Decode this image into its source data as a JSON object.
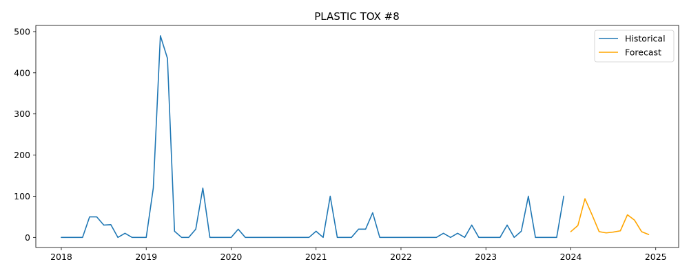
{
  "chart_data": {
    "type": "line",
    "title": "PLASTIC TOX #8",
    "xlabel": "",
    "ylabel": "",
    "xlim": [
      2017.7,
      2025.27
    ],
    "ylim": [
      -24.5,
      515
    ],
    "xticks": [
      2018,
      2019,
      2020,
      2021,
      2022,
      2023,
      2024,
      2025
    ],
    "yticks": [
      0,
      100,
      200,
      300,
      400,
      500
    ],
    "grid": false,
    "legend": "top-right",
    "series": [
      {
        "name": "Historical",
        "color": "#1f77b4",
        "points": [
          [
            "2018-01",
            0
          ],
          [
            "2018-02",
            0
          ],
          [
            "2018-03",
            0
          ],
          [
            "2018-04",
            0
          ],
          [
            "2018-05",
            50
          ],
          [
            "2018-06",
            50
          ],
          [
            "2018-07",
            30
          ],
          [
            "2018-08",
            31
          ],
          [
            "2018-09",
            0
          ],
          [
            "2018-10",
            10
          ],
          [
            "2018-11",
            0
          ],
          [
            "2018-12",
            0
          ],
          [
            "2019-01",
            0
          ],
          [
            "2019-02",
            120
          ],
          [
            "2019-03",
            490
          ],
          [
            "2019-04",
            435
          ],
          [
            "2019-05",
            15
          ],
          [
            "2019-06",
            0
          ],
          [
            "2019-07",
            0
          ],
          [
            "2019-08",
            20
          ],
          [
            "2019-09",
            120
          ],
          [
            "2019-10",
            0
          ],
          [
            "2019-11",
            0
          ],
          [
            "2019-12",
            0
          ],
          [
            "2020-01",
            0
          ],
          [
            "2020-02",
            20
          ],
          [
            "2020-03",
            0
          ],
          [
            "2020-04",
            0
          ],
          [
            "2020-05",
            0
          ],
          [
            "2020-06",
            0
          ],
          [
            "2020-07",
            0
          ],
          [
            "2020-08",
            0
          ],
          [
            "2020-09",
            0
          ],
          [
            "2020-10",
            0
          ],
          [
            "2020-11",
            0
          ],
          [
            "2020-12",
            0
          ],
          [
            "2021-01",
            15
          ],
          [
            "2021-02",
            0
          ],
          [
            "2021-03",
            100
          ],
          [
            "2021-04",
            0
          ],
          [
            "2021-05",
            0
          ],
          [
            "2021-06",
            0
          ],
          [
            "2021-07",
            20
          ],
          [
            "2021-08",
            20
          ],
          [
            "2021-09",
            60
          ],
          [
            "2021-10",
            0
          ],
          [
            "2021-11",
            0
          ],
          [
            "2021-12",
            0
          ],
          [
            "2022-01",
            0
          ],
          [
            "2022-02",
            0
          ],
          [
            "2022-03",
            0
          ],
          [
            "2022-04",
            0
          ],
          [
            "2022-05",
            0
          ],
          [
            "2022-06",
            0
          ],
          [
            "2022-07",
            10
          ],
          [
            "2022-08",
            0
          ],
          [
            "2022-09",
            10
          ],
          [
            "2022-10",
            0
          ],
          [
            "2022-11",
            30
          ],
          [
            "2022-12",
            0
          ],
          [
            "2023-01",
            0
          ],
          [
            "2023-02",
            0
          ],
          [
            "2023-03",
            0
          ],
          [
            "2023-04",
            30
          ],
          [
            "2023-05",
            0
          ],
          [
            "2023-06",
            15
          ],
          [
            "2023-07",
            100
          ],
          [
            "2023-08",
            0
          ],
          [
            "2023-09",
            0
          ],
          [
            "2023-10",
            0
          ],
          [
            "2023-11",
            0
          ],
          [
            "2023-12",
            100
          ]
        ]
      },
      {
        "name": "Forecast",
        "color": "#ffa500",
        "points": [
          [
            "2024-01",
            14
          ],
          [
            "2024-02",
            29
          ],
          [
            "2024-03",
            94
          ],
          [
            "2024-04",
            55
          ],
          [
            "2024-05",
            14
          ],
          [
            "2024-06",
            11
          ],
          [
            "2024-07",
            13
          ],
          [
            "2024-08",
            16
          ],
          [
            "2024-09",
            55
          ],
          [
            "2024-10",
            42
          ],
          [
            "2024-11",
            14
          ],
          [
            "2024-12",
            7
          ]
        ]
      }
    ]
  }
}
